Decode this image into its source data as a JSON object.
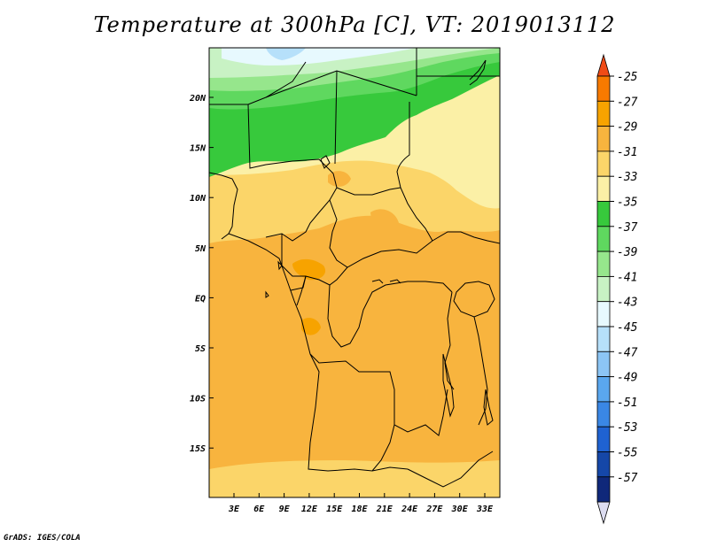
{
  "title": "Temperature at 300hPa [C], VT: 2019013112",
  "footer": "GrADS: IGES/COLA",
  "map": {
    "lon_labels": [
      "3E",
      "6E",
      "9E",
      "12E",
      "15E",
      "18E",
      "21E",
      "24E",
      "27E",
      "30E",
      "33E"
    ],
    "lat_labels": [
      "20N",
      "15N",
      "10N",
      "5N",
      "EQ",
      "5S",
      "10S",
      "15S"
    ]
  },
  "colorbar": {
    "labels": [
      "-25",
      "-27",
      "-29",
      "-31",
      "-33",
      "-35",
      "-37",
      "-39",
      "-41",
      "-43",
      "-45",
      "-47",
      "-49",
      "-51",
      "-53",
      "-55",
      "-57"
    ],
    "colors": [
      "#f04b16",
      "#f87a00",
      "#f7a300",
      "#f8b43e",
      "#fbd569",
      "#fbf0a6",
      "#37c93c",
      "#5fd85f",
      "#96e68c",
      "#c8f2c4",
      "#e7f9fe",
      "#b6e0fa",
      "#8cc5f5",
      "#5aa7ef",
      "#3a87e5",
      "#1f62d1",
      "#1547a8",
      "#0f287a",
      "#dcdcf0"
    ]
  },
  "colors": {
    "orange_main": "#f8b43e",
    "orange_deep": "#f7a300",
    "yellow": "#fbd569",
    "pale_yellow": "#fbf0a6",
    "green": "#37c93c"
  }
}
